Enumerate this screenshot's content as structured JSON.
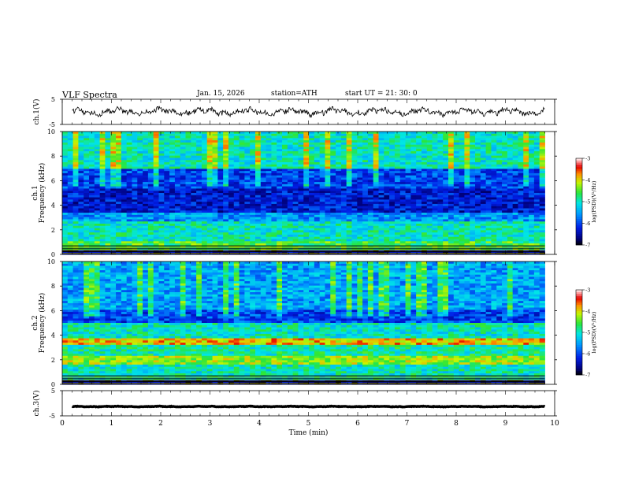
{
  "header": {
    "title": "VLF  Spectra",
    "date": "Jan. 15, 2026",
    "station": "station=ATH",
    "start": "start  UT  =   21: 30: 0"
  },
  "chart_data": [
    {
      "type": "line",
      "panel": "ch1-waveform",
      "ylabel": "ch.1(V)",
      "ylim": [
        -5,
        5
      ],
      "yticks": [
        "5",
        "-5"
      ],
      "xlim": [
        0,
        10
      ],
      "baseline": 0,
      "amplitude": 2.2
    },
    {
      "type": "heatmap",
      "panel": "ch1-spectrogram",
      "ylabel": "ch.1\nFrequency (kHz)",
      "ylabel_lines": [
        "ch.1",
        "Frequency (kHz)"
      ],
      "ylim": [
        0,
        10
      ],
      "yticks": [
        "0",
        "2",
        "4",
        "6",
        "8",
        "10"
      ],
      "xlim": [
        0,
        10
      ],
      "data_end_min": 9.8,
      "colorbar": {
        "label": "log(PSD)(V²/Hz)",
        "ticks": [
          "-3",
          "-4",
          "-5",
          "-6",
          "-7"
        ],
        "range": [
          -7,
          -3
        ]
      },
      "bands_khz": [
        {
          "f0": 0.0,
          "f1": 0.4,
          "level": -6.6
        },
        {
          "f0": 0.4,
          "f1": 1.0,
          "level": -4.6
        },
        {
          "f0": 1.0,
          "f1": 2.6,
          "level": -5.0
        },
        {
          "f0": 2.6,
          "f1": 3.4,
          "level": -5.6
        },
        {
          "f0": 3.4,
          "f1": 5.4,
          "level": -6.3
        },
        {
          "f0": 5.4,
          "f1": 7.0,
          "level": -6.0
        },
        {
          "f0": 7.0,
          "f1": 10.0,
          "level": -5.0
        }
      ]
    },
    {
      "type": "heatmap",
      "panel": "ch2-spectrogram",
      "ylabel": "ch.2\nFrequency (kHz)",
      "ylabel_lines": [
        "ch.2",
        "Frequency (kHz)"
      ],
      "ylim": [
        0,
        10
      ],
      "yticks": [
        "0",
        "2",
        "4",
        "6",
        "8",
        "10"
      ],
      "xlim": [
        0,
        10
      ],
      "data_end_min": 9.8,
      "colorbar": {
        "label": "log(PSD)(V²/Hz)",
        "ticks": [
          "-3",
          "-4",
          "-5",
          "-6",
          "-7"
        ],
        "range": [
          -7,
          -3
        ]
      },
      "bands_khz": [
        {
          "f0": 0.0,
          "f1": 0.4,
          "level": -6.6
        },
        {
          "f0": 0.4,
          "f1": 1.6,
          "level": -5.0
        },
        {
          "f0": 1.6,
          "f1": 2.4,
          "level": -4.3
        },
        {
          "f0": 2.4,
          "f1": 3.2,
          "level": -4.9
        },
        {
          "f0": 3.2,
          "f1": 3.8,
          "level": -3.9
        },
        {
          "f0": 3.8,
          "f1": 5.0,
          "level": -5.0
        },
        {
          "f0": 5.0,
          "f1": 6.0,
          "level": -6.0
        },
        {
          "f0": 6.0,
          "f1": 10.0,
          "level": -5.5
        }
      ]
    },
    {
      "type": "line",
      "panel": "ch3-waveform",
      "ylabel": "ch.3(V)",
      "ylim": [
        -5,
        5
      ],
      "yticks": [
        "5",
        "-5"
      ],
      "xlim": [
        0,
        10
      ],
      "baseline": -1.3,
      "amplitude": 0.2,
      "xlabel": "Time  (min)",
      "xticks": [
        "0",
        "1",
        "2",
        "3",
        "4",
        "5",
        "6",
        "7",
        "8",
        "9",
        "10"
      ]
    }
  ]
}
